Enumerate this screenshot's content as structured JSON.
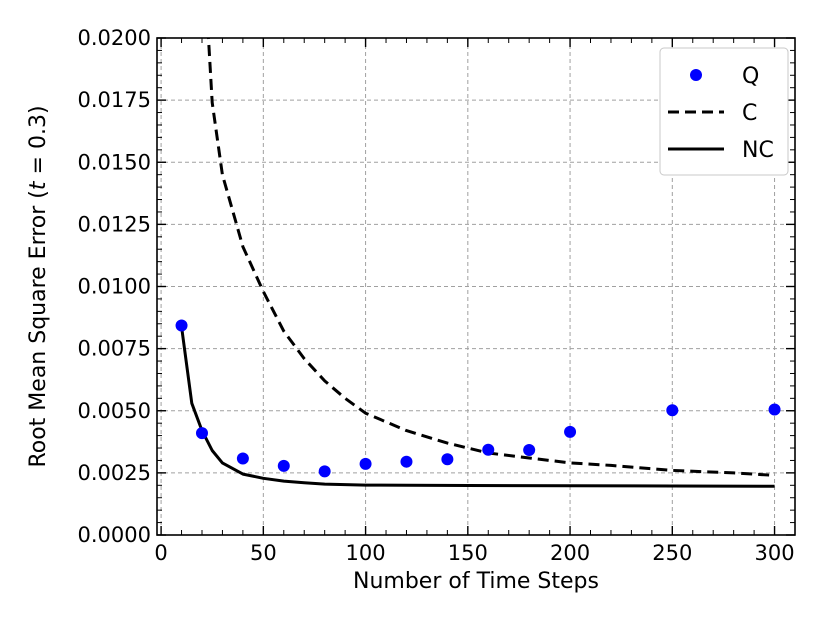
{
  "chart_data": {
    "type": "line",
    "xlabel": "Number of Time Steps",
    "ylabel": "Root Mean Square Error (",
    "ylabel_var": "t",
    "ylabel_rest": " = 0.3)",
    "xlim": [
      -2,
      310
    ],
    "ylim": [
      0.0,
      0.02
    ],
    "xticks": [
      0,
      50,
      100,
      150,
      200,
      250,
      300
    ],
    "yticks": [
      0.0,
      0.0025,
      0.005,
      0.0075,
      0.01,
      0.0125,
      0.015,
      0.0175,
      0.02
    ],
    "xtick_labels": [
      "0",
      "50",
      "100",
      "150",
      "200",
      "250",
      "300"
    ],
    "ytick_labels": [
      "0.0000",
      "0.0025",
      "0.0050",
      "0.0075",
      "0.0100",
      "0.0125",
      "0.0150",
      "0.0175",
      "0.0200"
    ],
    "grid": true,
    "legend_position": "top-right",
    "series": [
      {
        "name": "Q",
        "kind": "scatter",
        "color": "#0000ff",
        "x": [
          10,
          20,
          40,
          60,
          80,
          100,
          120,
          140,
          160,
          180,
          200,
          250,
          300
        ],
        "y": [
          0.00843,
          0.0041,
          0.00308,
          0.00278,
          0.00256,
          0.00286,
          0.00295,
          0.00305,
          0.00343,
          0.00342,
          0.00415,
          0.00502,
          0.00505
        ]
      },
      {
        "name": "C",
        "kind": "line",
        "style": "dashed",
        "color": "#000000",
        "x": [
          20,
          25,
          30,
          40,
          50,
          60,
          70,
          80,
          90,
          100,
          120,
          140,
          160,
          180,
          200,
          220,
          250,
          280,
          300
        ],
        "y": [
          0.0245,
          0.0174,
          0.0145,
          0.0116,
          0.0098,
          0.0082,
          0.0071,
          0.0062,
          0.0055,
          0.0049,
          0.0042,
          0.0037,
          0.0033,
          0.0031,
          0.0029,
          0.0028,
          0.0026,
          0.0025,
          0.0024
        ]
      },
      {
        "name": "NC",
        "kind": "line",
        "style": "solid",
        "color": "#000000",
        "x": [
          10,
          15,
          20,
          25,
          30,
          40,
          50,
          60,
          70,
          80,
          100,
          120,
          150,
          200,
          250,
          300
        ],
        "y": [
          0.0084,
          0.0053,
          0.0042,
          0.0034,
          0.0029,
          0.00245,
          0.00228,
          0.00217,
          0.0021,
          0.00205,
          0.00201,
          0.002,
          0.00199,
          0.00198,
          0.00197,
          0.00196
        ]
      }
    ]
  }
}
